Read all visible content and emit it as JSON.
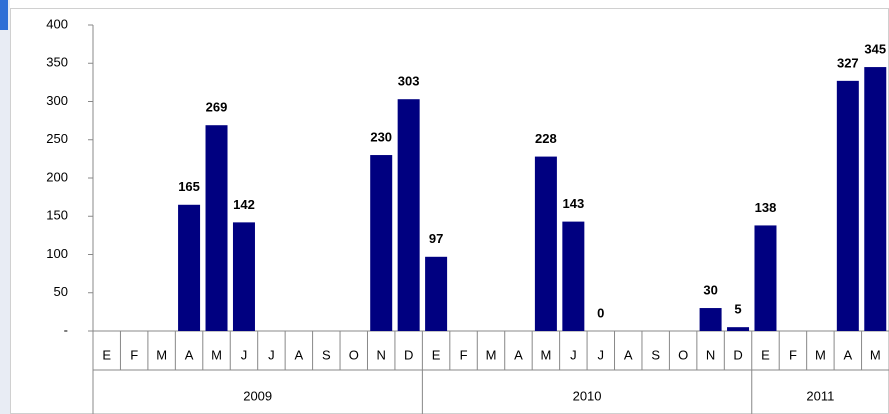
{
  "chart_data": {
    "type": "bar",
    "color": "#000080",
    "groups": [
      "2009",
      "2010",
      "2011"
    ],
    "categories": [
      [
        "E",
        "F",
        "M",
        "A",
        "M",
        "J",
        "J",
        "A",
        "S",
        "O",
        "N",
        "D"
      ],
      [
        "E",
        "F",
        "M",
        "A",
        "M",
        "J",
        "J",
        "A",
        "S",
        "O",
        "N",
        "D"
      ],
      [
        "E",
        "F",
        "M",
        "A",
        "M"
      ]
    ],
    "values": [
      [
        null,
        null,
        null,
        165,
        269,
        142,
        null,
        null,
        null,
        null,
        230,
        303
      ],
      [
        97,
        null,
        null,
        null,
        228,
        143,
        0,
        null,
        null,
        null,
        30,
        5
      ],
      [
        138,
        null,
        null,
        327,
        345
      ]
    ],
    "ylim": [
      0,
      400
    ],
    "yticks": [
      {
        "value": 0,
        "label": "-"
      },
      50,
      100,
      150,
      200,
      250,
      300,
      350,
      400
    ]
  }
}
